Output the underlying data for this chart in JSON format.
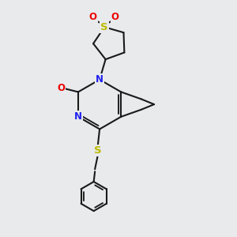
{
  "bg_color": "#e8eaec",
  "bond_color": "#1a1a1a",
  "N_color": "#2020ee",
  "O_color": "#ee0000",
  "S_color": "#bbbb00",
  "font_size": 8.5,
  "line_width": 1.5,
  "figsize": [
    3.0,
    3.0
  ],
  "dpi": 100,
  "xlim": [
    0,
    10
  ],
  "ylim": [
    0,
    10
  ]
}
